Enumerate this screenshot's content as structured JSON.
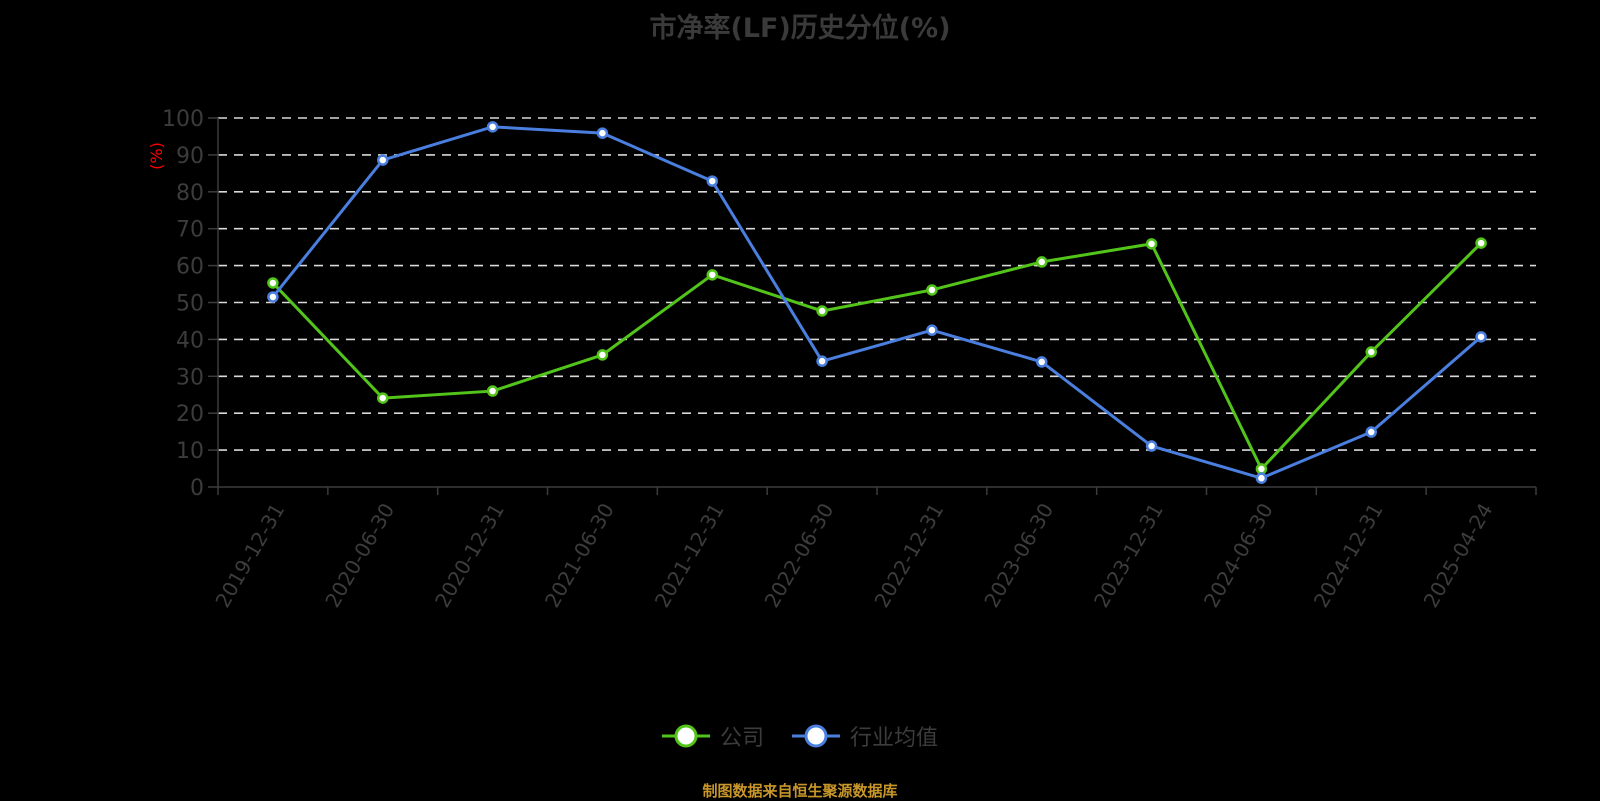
{
  "title": "市净率(LF)历史分位(%)",
  "y_unit_label": "(%)",
  "footer": "制图数据来自恒生聚源数据库",
  "legend": [
    {
      "label": "公司",
      "color": "#52c41a"
    },
    {
      "label": "行业均值",
      "color": "#4a7fe0"
    }
  ],
  "chart_data": {
    "type": "line",
    "title": "市净率(LF)历史分位(%)",
    "xlabel": "",
    "ylabel": "(%)",
    "ylim": [
      0,
      100
    ],
    "yticks": [
      0,
      10,
      20,
      30,
      40,
      50,
      60,
      70,
      80,
      90,
      100
    ],
    "grid": true,
    "legend_position": "bottom",
    "categories": [
      "2019-12-31",
      "2020-06-30",
      "2020-12-31",
      "2021-06-30",
      "2021-12-31",
      "2022-06-30",
      "2022-12-31",
      "2023-06-30",
      "2023-12-31",
      "2024-06-30",
      "2024-12-31",
      "2025-04-24"
    ],
    "series": [
      {
        "name": "公司",
        "color": "#52c41a",
        "values": [
          55.3,
          24.1,
          26.0,
          35.8,
          57.5,
          47.7,
          53.4,
          61.0,
          65.9,
          4.9,
          36.6,
          66.1
        ]
      },
      {
        "name": "行业均值",
        "color": "#4a7fe0",
        "values": [
          51.5,
          88.6,
          97.6,
          95.9,
          82.9,
          34.1,
          42.5,
          33.9,
          11.1,
          2.4,
          14.9,
          40.7
        ]
      }
    ]
  }
}
